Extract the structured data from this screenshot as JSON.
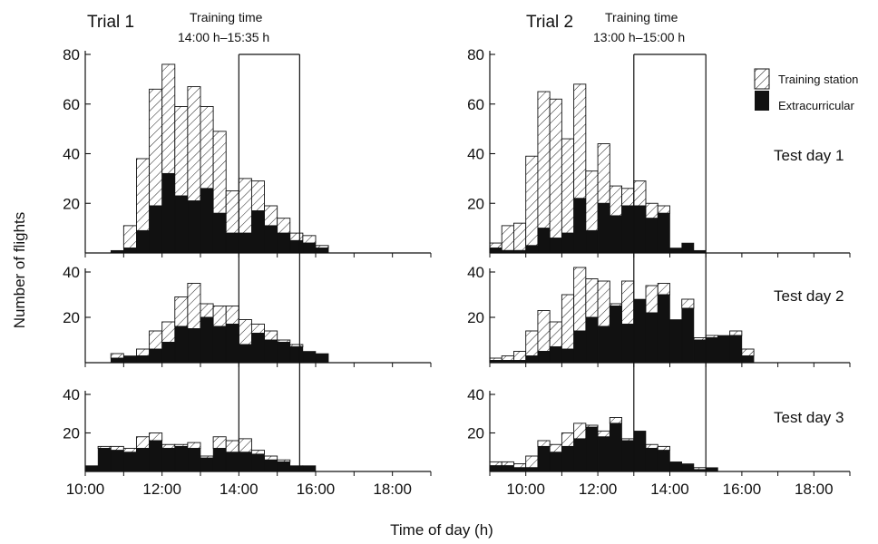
{
  "chart_data": {
    "type": "bar",
    "bin_width_hours": 0.3333,
    "ylabel": "Number of flights",
    "xlabel": "Time of day (h)",
    "x_ticks": [
      "10:00",
      "12:00",
      "14:00",
      "16:00",
      "18:00"
    ],
    "legend": {
      "position": "top-right",
      "training_label": "Training station",
      "extra_label": "Extracurricular"
    },
    "test_day_labels": [
      "Test day 1",
      "Test day 2",
      "Test day 3"
    ],
    "trials": [
      {
        "title": "Trial 1",
        "training_text": "Training time",
        "training_window_text": "14:00 h–15:35 h",
        "training_window": [
          14.0,
          15.5833
        ],
        "x_range": [
          10.0,
          19.0
        ],
        "days": [
          {
            "ylim": [
              0,
              80
            ],
            "yticks": [
              20,
              40,
              60,
              80
            ],
            "start": 10.667,
            "totals": [
              1,
              11,
              38,
              66,
              76,
              59,
              67,
              59,
              49,
              25,
              30,
              29,
              19,
              14,
              8,
              7,
              3
            ],
            "extra": [
              1,
              2,
              9,
              19,
              32,
              23,
              21,
              26,
              16,
              8,
              8,
              17,
              11,
              8,
              5,
              4,
              2
            ]
          },
          {
            "ylim": [
              0,
              40
            ],
            "yticks": [
              20,
              40
            ],
            "start": 10.667,
            "totals": [
              4,
              3,
              6,
              14,
              18,
              29,
              35,
              26,
              25,
              25,
              19,
              17,
              14,
              10,
              8,
              5,
              4
            ],
            "extra": [
              2,
              3,
              3,
              6,
              9,
              16,
              15,
              20,
              16,
              17,
              8,
              13,
              10,
              9,
              7,
              5,
              4
            ]
          },
          {
            "ylim": [
              0,
              40
            ],
            "yticks": [
              20,
              40
            ],
            "start": 10.0,
            "totals": [
              3,
              13,
              13,
              12,
              18,
              20,
              14,
              14,
              15,
              8,
              18,
              16,
              17,
              11,
              8,
              6,
              3,
              3
            ],
            "extra": [
              3,
              12,
              11,
              10,
              12,
              16,
              12,
              13,
              12,
              7,
              12,
              10,
              10,
              9,
              6,
              5,
              3,
              3
            ]
          }
        ]
      },
      {
        "title": "Trial 2",
        "training_text": "Training time",
        "training_window_text": "13:00 h–15:00 h",
        "training_window": [
          13.0,
          15.0
        ],
        "x_range": [
          9.0,
          19.0
        ],
        "days": [
          {
            "ylim": [
              0,
              80
            ],
            "yticks": [
              20,
              40,
              60,
              80
            ],
            "start": 9.0,
            "totals": [
              4,
              11,
              12,
              39,
              65,
              62,
              46,
              68,
              33,
              44,
              27,
              26,
              29,
              20,
              19,
              2,
              4,
              1
            ],
            "extra": [
              2,
              1,
              1,
              3,
              10,
              6,
              8,
              22,
              9,
              20,
              15,
              19,
              19,
              14,
              16,
              2,
              4,
              1
            ]
          },
          {
            "ylim": [
              0,
              40
            ],
            "yticks": [
              20,
              40
            ],
            "start": 9.0,
            "totals": [
              2,
              3,
              5,
              14,
              23,
              18,
              30,
              42,
              37,
              36,
              26,
              36,
              27,
              34,
              35,
              19,
              28,
              11,
              12,
              12,
              14,
              6
            ],
            "extra": [
              1,
              1,
              1,
              3,
              5,
              7,
              6,
              14,
              20,
              16,
              25,
              17,
              28,
              22,
              30,
              19,
              24,
              10,
              11,
              12,
              12,
              3
            ]
          },
          {
            "ylim": [
              0,
              40
            ],
            "yticks": [
              20,
              40
            ],
            "start": 9.0,
            "totals": [
              5,
              5,
              4,
              8,
              16,
              14,
              20,
              25,
              24,
              21,
              28,
              17,
              21,
              14,
              13,
              5,
              4,
              2,
              2
            ],
            "extra": [
              3,
              3,
              2,
              2,
              13,
              10,
              13,
              17,
              23,
              18,
              25,
              16,
              21,
              12,
              11,
              5,
              4,
              1,
              2
            ]
          }
        ]
      }
    ]
  }
}
